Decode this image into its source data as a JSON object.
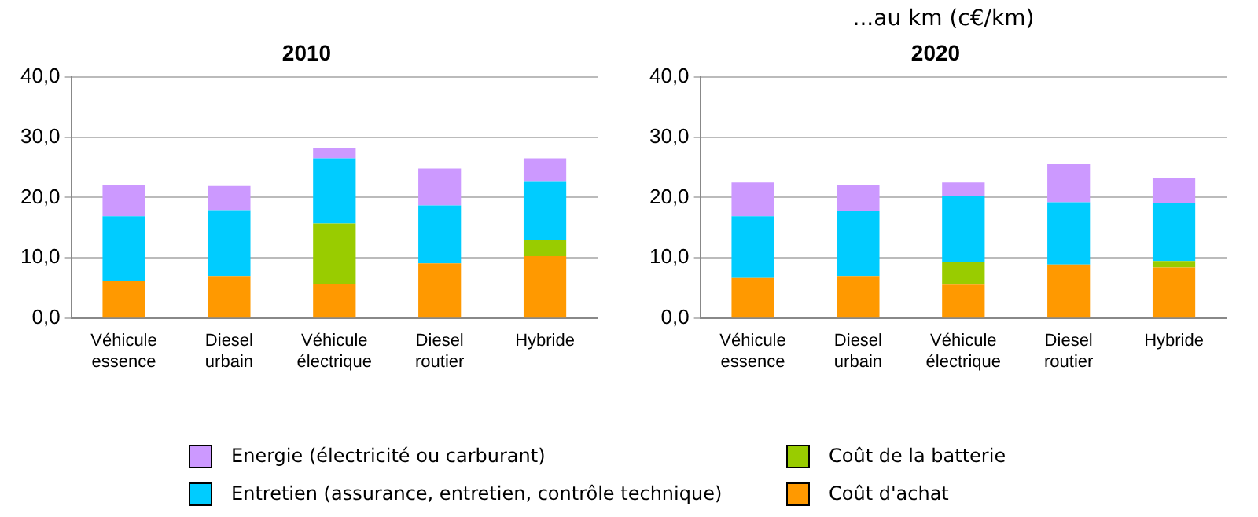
{
  "chart_data": [
    {
      "type": "bar",
      "title": "2010",
      "stacked": true,
      "legend": "bottom",
      "grid": "y",
      "categories": [
        "Véhicule essence",
        "Diesel urbain",
        "Véhicule électrique",
        "Diesel routier",
        "Hybride"
      ],
      "ylim": [
        0,
        40
      ],
      "yticks": [
        {
          "value": 0,
          "label": "0,0"
        },
        {
          "value": 10,
          "label": "10,0"
        },
        {
          "value": 20,
          "label": "20,0"
        },
        {
          "value": 30,
          "label": "30,0"
        },
        {
          "value": 40,
          "label": "40,0"
        }
      ],
      "series": [
        {
          "name": "Coût d'achat",
          "color": "#ff9900",
          "values": [
            6.2,
            7.0,
            5.7,
            9.1,
            10.3
          ]
        },
        {
          "name": "Coût de la batterie",
          "color": "#99cc00",
          "values": [
            0,
            0,
            10.0,
            0,
            2.6
          ]
        },
        {
          "name": "Entretien (assurance, entretien, contrôle technique)",
          "color": "#00ccff",
          "values": [
            10.7,
            10.9,
            10.8,
            9.6,
            9.7
          ]
        },
        {
          "name": "Energie (électricité ou carburant)",
          "color": "#cc99ff",
          "values": [
            5.2,
            4.0,
            1.7,
            6.1,
            3.9
          ]
        }
      ]
    },
    {
      "type": "bar",
      "title": "2020",
      "annotations": [
        "...au km (c€/km)"
      ],
      "stacked": true,
      "grid": "y",
      "categories": [
        "Véhicule essence",
        "Diesel urbain",
        "Véhicule électrique",
        "Diesel routier",
        "Hybride"
      ],
      "ylim": [
        0,
        40
      ],
      "yticks": [
        {
          "value": 0,
          "label": "0,0"
        },
        {
          "value": 10,
          "label": "10,0"
        },
        {
          "value": 20,
          "label": "20,0"
        },
        {
          "value": 30,
          "label": "30,0"
        },
        {
          "value": 40,
          "label": "40,0"
        }
      ],
      "series": [
        {
          "color": "#ff9900",
          "values": [
            6.7,
            7.0,
            5.6,
            8.9,
            8.4
          ]
        },
        {
          "color": "#99cc00",
          "values": [
            0,
            0,
            3.8,
            0,
            1.1
          ]
        },
        {
          "color": "#00ccff",
          "values": [
            10.2,
            10.8,
            10.8,
            10.3,
            9.6
          ]
        },
        {
          "color": "#cc99ff",
          "values": [
            5.6,
            4.2,
            2.3,
            6.3,
            4.2
          ]
        }
      ]
    }
  ]
}
